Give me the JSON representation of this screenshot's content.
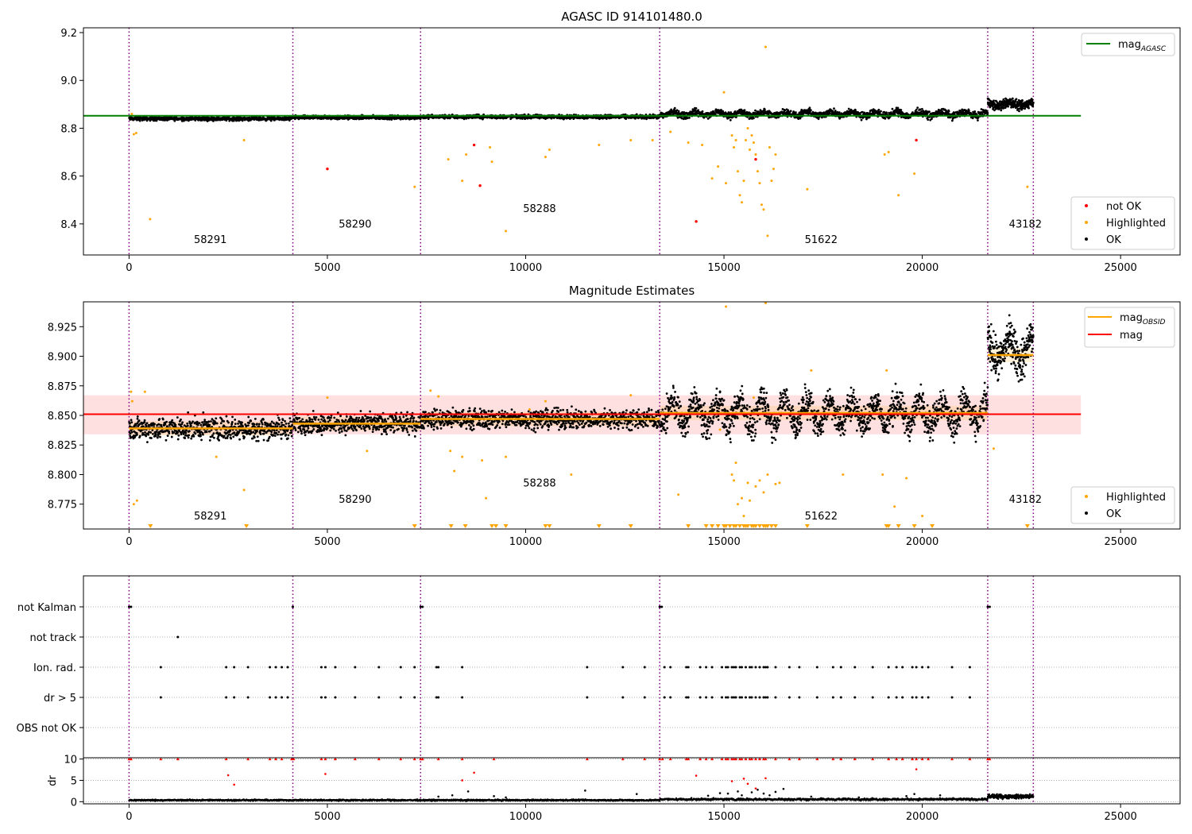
{
  "figure": {
    "panel1_title": "AGASC ID 914101480.0",
    "panel2_title": "Magnitude Estimates"
  },
  "colors": {
    "ok": "#000000",
    "highlighted": "#ffa500",
    "not_ok": "#ff0000",
    "mag_agasc": "#008000",
    "mag_obsid": "#ffa500",
    "mag": "#ff0000",
    "obsid_boundary": "#800080"
  },
  "chart_data": [
    {
      "type": "scatter",
      "title": "AGASC ID 914101480.0",
      "xlim": [
        -1150,
        26500
      ],
      "ylim": [
        8.27,
        9.22
      ],
      "xticks": [
        0,
        5000,
        10000,
        15000,
        20000,
        25000
      ],
      "yticks": [
        8.4,
        8.6,
        8.8,
        9.0,
        9.2
      ],
      "obsid_boundaries": [
        0,
        4130,
        7350,
        13380,
        21650,
        22800
      ],
      "obsid_labels": [
        {
          "label": "58291",
          "x": 2050,
          "y": 8.32
        },
        {
          "label": "58290",
          "x": 5700,
          "y": 8.385
        },
        {
          "label": "58288",
          "x": 10350,
          "y": 8.45
        },
        {
          "label": "51622",
          "x": 17450,
          "y": 8.32
        },
        {
          "label": "43182",
          "x": 22600,
          "y": 8.385
        }
      ],
      "mag_agasc": 8.852,
      "mag_agasc_range": [
        -1150,
        24000
      ],
      "ok_bands": [
        {
          "x0": 0,
          "x1": 4130,
          "center": 8.84,
          "spread": 0.012
        },
        {
          "x0": 4130,
          "x1": 7350,
          "center": 8.845,
          "spread": 0.012
        },
        {
          "x0": 7350,
          "x1": 13380,
          "center": 8.848,
          "spread": 0.012
        },
        {
          "x0": 13380,
          "x1": 21650,
          "center": 8.86,
          "spread": 0.022
        },
        {
          "x0": 21650,
          "x1": 22800,
          "center": 8.9,
          "spread": 0.03
        }
      ],
      "highlighted_points": [
        [
          70,
          8.86
        ],
        [
          120,
          8.775
        ],
        [
          180,
          8.78
        ],
        [
          530,
          8.42
        ],
        [
          2900,
          8.75
        ],
        [
          7200,
          8.555
        ],
        [
          8050,
          8.67
        ],
        [
          8400,
          8.58
        ],
        [
          8500,
          8.69
        ],
        [
          9100,
          8.72
        ],
        [
          9150,
          8.66
        ],
        [
          9500,
          8.37
        ],
        [
          10500,
          8.68
        ],
        [
          10600,
          8.71
        ],
        [
          11850,
          8.73
        ],
        [
          12650,
          8.75
        ],
        [
          13200,
          8.75
        ],
        [
          13650,
          8.785
        ],
        [
          14100,
          8.74
        ],
        [
          14450,
          8.73
        ],
        [
          14700,
          8.59
        ],
        [
          14850,
          8.64
        ],
        [
          15000,
          8.95
        ],
        [
          15050,
          8.57
        ],
        [
          15200,
          8.77
        ],
        [
          15250,
          8.72
        ],
        [
          15300,
          8.75
        ],
        [
          15350,
          8.62
        ],
        [
          15400,
          8.52
        ],
        [
          15450,
          8.49
        ],
        [
          15500,
          8.58
        ],
        [
          15550,
          8.75
        ],
        [
          15600,
          8.8
        ],
        [
          15650,
          8.71
        ],
        [
          15700,
          8.77
        ],
        [
          15750,
          8.74
        ],
        [
          15800,
          8.69
        ],
        [
          15850,
          8.62
        ],
        [
          15900,
          8.57
        ],
        [
          15950,
          8.48
        ],
        [
          16000,
          8.46
        ],
        [
          16050,
          9.14
        ],
        [
          16100,
          8.35
        ],
        [
          16150,
          8.72
        ],
        [
          16200,
          8.58
        ],
        [
          16250,
          8.63
        ],
        [
          16300,
          8.69
        ],
        [
          17100,
          8.545
        ],
        [
          19050,
          8.69
        ],
        [
          19150,
          8.7
        ],
        [
          19400,
          8.52
        ],
        [
          19800,
          8.61
        ],
        [
          22650,
          8.555
        ]
      ],
      "not_ok_points": [
        [
          5000,
          8.63
        ],
        [
          8700,
          8.73
        ],
        [
          8850,
          8.56
        ],
        [
          14300,
          8.41
        ],
        [
          15800,
          8.67
        ],
        [
          19850,
          8.75
        ]
      ],
      "legend_lines": [
        {
          "label_main": "mag",
          "label_sub": "AGASC"
        }
      ],
      "legend_points": [
        {
          "label": "not OK"
        },
        {
          "label": "Highlighted"
        },
        {
          "label": "OK"
        }
      ]
    },
    {
      "type": "scatter",
      "title": "Magnitude Estimates",
      "xlim": [
        -1150,
        26500
      ],
      "ylim": [
        8.754,
        8.946
      ],
      "xticks": [
        0,
        5000,
        10000,
        15000,
        20000,
        25000
      ],
      "yticks": [
        8.775,
        8.8,
        8.825,
        8.85,
        8.875,
        8.9,
        8.925
      ],
      "obsid_boundaries": [
        0,
        4130,
        7350,
        13380,
        21650,
        22800
      ],
      "obsid_labels": [
        {
          "label": "58291",
          "x": 2050,
          "y": 8.762
        },
        {
          "label": "58290",
          "x": 5700,
          "y": 8.776
        },
        {
          "label": "58288",
          "x": 10350,
          "y": 8.79
        },
        {
          "label": "51622",
          "x": 17450,
          "y": 8.762
        },
        {
          "label": "43182",
          "x": 22600,
          "y": 8.776
        }
      ],
      "mag": 8.851,
      "mag_band": [
        8.834,
        8.867
      ],
      "mag_range": [
        -1150,
        24000
      ],
      "mag_obsid": [
        {
          "x0": 0,
          "x1": 4130,
          "value": 8.839
        },
        {
          "x0": 4130,
          "x1": 7350,
          "value": 8.843
        },
        {
          "x0": 7350,
          "x1": 13380,
          "value": 8.847
        },
        {
          "x0": 13380,
          "x1": 21650,
          "value": 8.852
        },
        {
          "x0": 21650,
          "x1": 22800,
          "value": 8.901
        }
      ],
      "ok_bands": [
        {
          "x0": 0,
          "x1": 4130,
          "center": 8.839,
          "spread": 0.014
        },
        {
          "x0": 4130,
          "x1": 7350,
          "center": 8.843,
          "spread": 0.012
        },
        {
          "x0": 7350,
          "x1": 13380,
          "center": 8.847,
          "spread": 0.012
        },
        {
          "x0": 13380,
          "x1": 21650,
          "center": 8.852,
          "spread": 0.02
        },
        {
          "x0": 21650,
          "x1": 22800,
          "center": 8.905,
          "spread": 0.025
        }
      ],
      "highlighted_points": [
        [
          50,
          8.87
        ],
        [
          80,
          8.862
        ],
        [
          120,
          8.775
        ],
        [
          200,
          8.778
        ],
        [
          400,
          8.87
        ],
        [
          2200,
          8.815
        ],
        [
          2900,
          8.787
        ],
        [
          5000,
          8.865
        ],
        [
          6000,
          8.82
        ],
        [
          7600,
          8.871
        ],
        [
          7800,
          8.866
        ],
        [
          8100,
          8.82
        ],
        [
          8200,
          8.803
        ],
        [
          8400,
          8.815
        ],
        [
          8900,
          8.812
        ],
        [
          9000,
          8.78
        ],
        [
          9500,
          8.815
        ],
        [
          10100,
          8.855
        ],
        [
          10500,
          8.862
        ],
        [
          11150,
          8.8
        ],
        [
          12650,
          8.867
        ],
        [
          13850,
          8.783
        ],
        [
          14900,
          8.838
        ],
        [
          15050,
          8.942
        ],
        [
          15200,
          8.8
        ],
        [
          15250,
          8.795
        ],
        [
          15300,
          8.81
        ],
        [
          15350,
          8.775
        ],
        [
          15450,
          8.78
        ],
        [
          15500,
          8.765
        ],
        [
          15600,
          8.793
        ],
        [
          15650,
          8.778
        ],
        [
          15750,
          8.865
        ],
        [
          15800,
          8.79
        ],
        [
          15900,
          8.795
        ],
        [
          16000,
          8.785
        ],
        [
          16050,
          8.945
        ],
        [
          16100,
          8.8
        ],
        [
          16300,
          8.792
        ],
        [
          16400,
          8.793
        ],
        [
          17200,
          8.888
        ],
        [
          18000,
          8.8
        ],
        [
          19000,
          8.8
        ],
        [
          19300,
          8.773
        ],
        [
          19600,
          8.797
        ],
        [
          19100,
          8.888
        ],
        [
          20000,
          8.765
        ],
        [
          21800,
          8.822
        ]
      ],
      "clipped_low_x": [
        540,
        2960,
        7200,
        8120,
        8480,
        9150,
        9250,
        9500,
        10500,
        10600,
        11850,
        12650,
        14100,
        14550,
        14700,
        14850,
        15000,
        15050,
        15150,
        15250,
        15300,
        15400,
        15500,
        15550,
        15600,
        15700,
        15750,
        15800,
        15900,
        16000,
        16050,
        16100,
        16200,
        16300,
        17100,
        19100,
        19150,
        19400,
        19800,
        20250,
        22650
      ],
      "legend_lines": [
        {
          "label_main": "mag",
          "label_sub": "OBSID"
        },
        {
          "label_main": "mag",
          "label_sub": ""
        }
      ],
      "legend_points": [
        {
          "label": "Highlighted"
        },
        {
          "label": "OK"
        }
      ]
    },
    {
      "type": "scatter",
      "title": "",
      "xlim": [
        -1150,
        26500
      ],
      "category_rows": [
        "not Kalman",
        "not track",
        "Ion. rad.",
        "dr > 5",
        "OBS not OK"
      ],
      "obsid_boundaries": [
        0,
        4130,
        7350,
        13380,
        21650,
        22800
      ],
      "flags": {
        "not Kalman": [
          0,
          50,
          4130,
          7350,
          7400,
          13380,
          13430,
          21650,
          21700
        ],
        "not track": [
          1230
        ],
        "Ion. rad.": [
          800,
          2450,
          2650,
          3000,
          3550,
          3700,
          3850,
          4000,
          4850,
          4950,
          5200,
          5700,
          6300,
          6850,
          7200,
          7750,
          7800,
          8400,
          11550,
          12450,
          13000,
          13500,
          13650,
          14050,
          14100,
          14400,
          14550,
          14700,
          14950,
          15050,
          15100,
          15200,
          15250,
          15300,
          15400,
          15450,
          15550,
          15650,
          15700,
          15800,
          15900,
          16000,
          16050,
          16100,
          16300,
          16650,
          16900,
          17350,
          17750,
          17950,
          18300,
          18750,
          19150,
          19350,
          19500,
          19750,
          19850,
          20000,
          20150,
          20750,
          21200
        ],
        "dr > 5": [
          800,
          2450,
          2650,
          3000,
          3550,
          3700,
          3850,
          4000,
          4850,
          4950,
          5200,
          5700,
          6300,
          6850,
          7200,
          7750,
          7800,
          8400,
          11550,
          12450,
          13000,
          13500,
          13650,
          14050,
          14100,
          14400,
          14550,
          14700,
          14950,
          15050,
          15100,
          15200,
          15250,
          15300,
          15400,
          15450,
          15550,
          15650,
          15700,
          15800,
          15900,
          16000,
          16050,
          16100,
          16300,
          16650,
          16900,
          17350,
          17750,
          17950,
          18300,
          18750,
          19150,
          19350,
          19500,
          19750,
          19850,
          20000,
          20150,
          20750,
          21200
        ],
        "OBS not OK": []
      }
    },
    {
      "type": "scatter",
      "title": "",
      "ylabel": "dr",
      "xlim": [
        -1150,
        26500
      ],
      "ylim": [
        -0.5,
        10.3
      ],
      "xticks": [
        0,
        5000,
        10000,
        15000,
        20000,
        25000
      ],
      "yticks": [
        0,
        5,
        10
      ],
      "obsid_boundaries": [
        0,
        4130,
        7350,
        13380,
        21650,
        22800
      ],
      "baseline_bands": [
        {
          "x0": 0,
          "x1": 13380,
          "center": 0.35,
          "spread": 0.25
        },
        {
          "x0": 13380,
          "x1": 21650,
          "center": 0.55,
          "spread": 0.35
        },
        {
          "x0": 21650,
          "x1": 22800,
          "center": 1.2,
          "spread": 0.7
        }
      ],
      "clipped_at_10_x": [
        0,
        50,
        800,
        1230,
        2450,
        3000,
        3550,
        3700,
        3850,
        4100,
        4150,
        4850,
        4950,
        5200,
        5700,
        6300,
        6850,
        7200,
        7350,
        7400,
        7800,
        8400,
        9200,
        11550,
        12450,
        13000,
        13380,
        13450,
        13650,
        14050,
        14100,
        14400,
        14550,
        14700,
        14950,
        15050,
        15100,
        15200,
        15250,
        15300,
        15400,
        15450,
        15550,
        15650,
        15700,
        15800,
        15900,
        16000,
        16050,
        16300,
        16650,
        16900,
        17350,
        17750,
        17950,
        18300,
        18750,
        19150,
        19350,
        19500,
        19750,
        19850,
        20000,
        20150,
        20750,
        21200,
        21650,
        21700
      ],
      "scattered_red_points": [
        [
          2500,
          6.2
        ],
        [
          2650,
          4.0
        ],
        [
          4950,
          6.5
        ],
        [
          8700,
          6.8
        ],
        [
          15500,
          5.4
        ],
        [
          15600,
          4.2
        ],
        [
          15800,
          3.1
        ],
        [
          16050,
          5.5
        ],
        [
          14300,
          6.1
        ],
        [
          19850,
          7.6
        ],
        [
          8400,
          5.0
        ],
        [
          15200,
          4.8
        ]
      ],
      "scattered_black_points": [
        [
          7800,
          1.2
        ],
        [
          8150,
          1.5
        ],
        [
          8550,
          2.4
        ],
        [
          9200,
          1.3
        ],
        [
          9500,
          1.0
        ],
        [
          11500,
          2.6
        ],
        [
          12800,
          1.8
        ],
        [
          14600,
          1.4
        ],
        [
          14900,
          2.0
        ],
        [
          15100,
          1.9
        ],
        [
          15350,
          2.4
        ],
        [
          15450,
          1.5
        ],
        [
          15700,
          2.2
        ],
        [
          15850,
          2.8
        ],
        [
          16000,
          1.9
        ],
        [
          16150,
          1.5
        ],
        [
          16300,
          2.3
        ],
        [
          16500,
          3.0
        ],
        [
          17200,
          1.2
        ],
        [
          18400,
          1.0
        ],
        [
          19600,
          1.3
        ],
        [
          19800,
          1.8
        ],
        [
          20450,
          1.5
        ]
      ]
    }
  ]
}
